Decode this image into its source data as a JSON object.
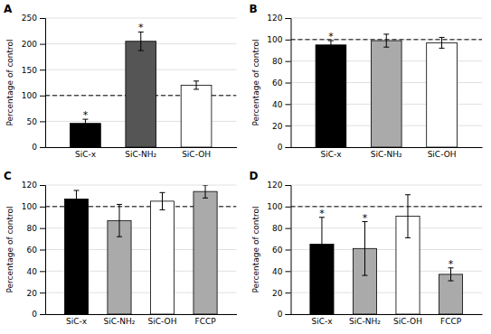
{
  "chart_data": [
    {
      "type": "bar",
      "title": "A",
      "categories": [
        "SiC-x",
        "SiC-NH₂",
        "SiC-OH"
      ],
      "values": [
        46,
        205,
        120
      ],
      "errors": [
        8,
        18,
        8
      ],
      "colors": [
        "#000000",
        "#555555",
        "#ffffff"
      ],
      "significance": [
        true,
        true,
        false
      ],
      "significance_label": "*",
      "ylim": [
        0,
        250
      ],
      "yticks": [
        0,
        50,
        100,
        150,
        200,
        250
      ],
      "reference_line": 100,
      "ylabel": "Percentage of control",
      "grid": true
    },
    {
      "type": "bar",
      "title": "B",
      "categories": [
        "SiC-x",
        "SiC-NH₂",
        "SiC-OH"
      ],
      "values": [
        95,
        99,
        97
      ],
      "errors": [
        4,
        6,
        5
      ],
      "colors": [
        "#000000",
        "#aaaaaa",
        "#ffffff"
      ],
      "significance": [
        true,
        false,
        false
      ],
      "significance_label": "*",
      "ylim": [
        0,
        120
      ],
      "yticks": [
        0,
        20,
        40,
        60,
        80,
        100,
        120
      ],
      "reference_line": 100,
      "ylabel": "Percentage of control",
      "grid": true
    },
    {
      "type": "bar",
      "title": "C",
      "categories": [
        "SiC-x",
        "SiC-NH₂",
        "SiC-OH",
        "FCCP"
      ],
      "values": [
        107,
        87,
        105,
        114
      ],
      "errors": [
        8,
        15,
        8,
        6
      ],
      "colors": [
        "#000000",
        "#aaaaaa",
        "#ffffff",
        "#aaaaaa"
      ],
      "significance": [
        false,
        false,
        false,
        false
      ],
      "significance_label": "*",
      "ylim": [
        0,
        120
      ],
      "yticks": [
        0,
        20,
        40,
        60,
        80,
        100,
        120
      ],
      "reference_line": 100,
      "ylabel": "Percentage of control",
      "grid": true
    },
    {
      "type": "bar",
      "title": "D",
      "categories": [
        "SiC-x",
        "SiC-NH₂",
        "SiC-OH",
        "FCCP"
      ],
      "values": [
        65,
        61,
        91,
        37
      ],
      "errors": [
        25,
        25,
        20,
        6
      ],
      "colors": [
        "#000000",
        "#aaaaaa",
        "#ffffff",
        "#aaaaaa"
      ],
      "significance": [
        true,
        true,
        false,
        true
      ],
      "significance_label": "*",
      "ylim": [
        0,
        120
      ],
      "yticks": [
        0,
        20,
        40,
        60,
        80,
        100,
        120
      ],
      "reference_line": 100,
      "ylabel": "Percentage of control",
      "grid": true
    }
  ]
}
